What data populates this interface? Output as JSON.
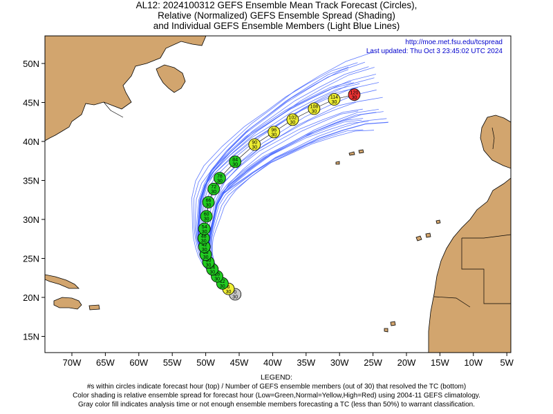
{
  "title": {
    "line1": "AL12: 2024100312 GEFS Ensemble Mean Track Forecast (Circles),",
    "line2": "Relative (Normalized) GEFS Ensemble Spread (Shading)",
    "line3": "and Individual GEFS Ensemble Members (Light Blue Lines)"
  },
  "info": {
    "url": "http://moe.met.fsu.edu/tcspread",
    "updated": "Last updated: Thu Oct 3 23:45:02 UTC 2024"
  },
  "colors": {
    "land": "#d2a56e",
    "ocean": "#ffffff",
    "member_lines": "#4060ff",
    "circle_low": "#22cc22",
    "circle_normal": "#eeee33",
    "circle_high": "#ee3333",
    "circle_gray": "#c8c8c8",
    "info_text": "#0000cc"
  },
  "axes": {
    "x_ticks": [
      "70W",
      "65W",
      "60W",
      "55W",
      "50W",
      "45W",
      "40W",
      "35W",
      "30W",
      "25W",
      "20W",
      "15W",
      "10W",
      "5W"
    ],
    "y_ticks": [
      "50N",
      "45N",
      "40N",
      "35N",
      "30N",
      "25N",
      "20N",
      "15N"
    ],
    "lon_range": [
      -75,
      -5
    ],
    "lat_range": [
      13,
      53
    ]
  },
  "track": [
    {
      "hour": "0",
      "members": "30",
      "lon": -45.6,
      "lat": 20.4,
      "spread": "gray"
    },
    {
      "hour": "6",
      "members": "30",
      "lon": -46.6,
      "lat": 21.1,
      "spread": "normal"
    },
    {
      "hour": "12",
      "members": "30",
      "lon": -47.5,
      "lat": 21.8,
      "spread": "low"
    },
    {
      "hour": "18",
      "members": "30",
      "lon": -48.3,
      "lat": 22.7,
      "spread": "low"
    },
    {
      "hour": "24",
      "members": "30",
      "lon": -49.0,
      "lat": 23.6,
      "spread": "low"
    },
    {
      "hour": "30",
      "members": "30",
      "lon": -49.6,
      "lat": 24.5,
      "spread": "low"
    },
    {
      "hour": "36",
      "members": "30",
      "lon": -50.0,
      "lat": 25.5,
      "spread": "low"
    },
    {
      "hour": "42",
      "members": "30",
      "lon": -50.2,
      "lat": 26.5,
      "spread": "low"
    },
    {
      "hour": "48",
      "members": "30",
      "lon": -50.3,
      "lat": 27.6,
      "spread": "low"
    },
    {
      "hour": "54",
      "members": "30",
      "lon": -50.2,
      "lat": 28.8,
      "spread": "low"
    },
    {
      "hour": "60",
      "members": "30",
      "lon": -49.9,
      "lat": 30.4,
      "spread": "low"
    },
    {
      "hour": "66",
      "members": "30",
      "lon": -49.6,
      "lat": 32.2,
      "spread": "low"
    },
    {
      "hour": "72",
      "members": "30",
      "lon": -48.8,
      "lat": 33.9,
      "spread": "low"
    },
    {
      "hour": "78",
      "members": "30",
      "lon": -47.9,
      "lat": 35.3,
      "spread": "low"
    },
    {
      "hour": "84",
      "members": "30",
      "lon": -45.6,
      "lat": 37.4,
      "spread": "low"
    },
    {
      "hour": "90",
      "members": "30",
      "lon": -42.7,
      "lat": 39.6,
      "spread": "normal"
    },
    {
      "hour": "96",
      "members": "30",
      "lon": -39.8,
      "lat": 41.2,
      "spread": "normal"
    },
    {
      "hour": "102",
      "members": "30",
      "lon": -37.0,
      "lat": 42.8,
      "spread": "normal"
    },
    {
      "hour": "108",
      "members": "30",
      "lon": -33.8,
      "lat": 44.2,
      "spread": "normal"
    },
    {
      "hour": "114",
      "members": "30",
      "lon": -30.8,
      "lat": 45.4,
      "spread": "normal"
    },
    {
      "hour": "120",
      "members": "30",
      "lon": -27.8,
      "lat": 46.0,
      "spread": "high"
    }
  ],
  "legend": {
    "heading": "LEGEND:",
    "line1": "#s within circles indicate forecast hour (top) / Number of GEFS ensemble members (out of 30) that resolved the TC (bottom)",
    "line2": "Color shading is relative ensemble spread for forecast hour (Low=Green,Normal=Yellow,High=Red) using 2004-11 GEFS climatology.",
    "line3": "Gray color fill indicates analysis time or not enough ensemble members forecasting a TC (less than 50%) to warrant classification."
  }
}
